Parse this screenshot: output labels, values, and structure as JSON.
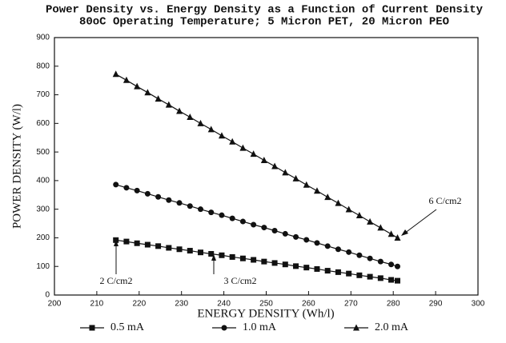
{
  "chart_data": {
    "type": "line",
    "title": "Power Density vs. Energy Density as a Function of Current Density",
    "subtitle": "80oC Operating Temperature; 5 Micron PET, 20 Micron PEO",
    "x_label": "ENERGY DENSITY (Wh/l)",
    "y_label": "POWER DENSITY (W/l)",
    "xlim": [
      200,
      300
    ],
    "xticks": [
      200,
      210,
      220,
      230,
      240,
      250,
      260,
      270,
      280,
      290,
      300
    ],
    "ylim": [
      0,
      900
    ],
    "yticks": [
      0,
      100,
      200,
      300,
      400,
      500,
      600,
      700,
      800,
      900
    ],
    "x": [
      214.5,
      217,
      219.5,
      222,
      224.5,
      227,
      229.5,
      232,
      234.5,
      237,
      239.5,
      242,
      244.5,
      247,
      249.5,
      252,
      254.5,
      257,
      259.5,
      262,
      264.5,
      267,
      269.5,
      272,
      274.5,
      277,
      279.5,
      281
    ],
    "series": [
      {
        "name": "0.5 mA",
        "color": "#111111",
        "marker": "square",
        "values": [
          192,
          187,
          181,
          176,
          171,
          165,
          160,
          155,
          149,
          144,
          139,
          133,
          128,
          123,
          117,
          112,
          107,
          101,
          96,
          91,
          85,
          80,
          75,
          69,
          64,
          59,
          53,
          50
        ]
      },
      {
        "name": "1.0 mA",
        "color": "#111111",
        "marker": "circle",
        "values": [
          386,
          375,
          365,
          354,
          343,
          332,
          322,
          311,
          300,
          289,
          279,
          268,
          257,
          246,
          236,
          225,
          214,
          203,
          193,
          182,
          171,
          160,
          150,
          139,
          128,
          117,
          107,
          100
        ]
      },
      {
        "name": "2.0 mA",
        "color": "#111111",
        "marker": "triangle",
        "values": [
          772,
          751,
          729,
          708,
          686,
          665,
          643,
          622,
          600,
          579,
          557,
          536,
          514,
          493,
          471,
          450,
          428,
          407,
          385,
          364,
          342,
          321,
          299,
          278,
          256,
          235,
          213,
          200
        ]
      }
    ],
    "annotations": [
      "2 C/cm2",
      "3 C/cm2",
      "6 C/cm2"
    ]
  }
}
